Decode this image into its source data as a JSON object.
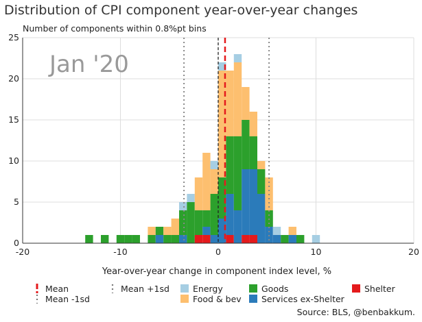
{
  "chart_data": {
    "type": "bar",
    "title": "Distribution of CPI component year-over-year changes",
    "subtitle": "Number of components within 0.8%pt bins",
    "annotation": "Jan '20",
    "xlabel": "Year-over-year change in component index level, %",
    "ylabel": "",
    "xlim": [
      -20,
      20
    ],
    "ylim": [
      0,
      25
    ],
    "x_ticks": [
      -20,
      -10,
      0,
      10,
      20
    ],
    "y_ticks": [
      0,
      5,
      10,
      15,
      20,
      25
    ],
    "bin_width": 0.8,
    "stacked": true,
    "grid": true,
    "x": [
      -13.6,
      -12.0,
      -10.4,
      -9.6,
      -8.8,
      -7.2,
      -6.4,
      -5.6,
      -4.8,
      -4.0,
      -3.2,
      -2.4,
      -1.6,
      -0.8,
      0.0,
      0.8,
      1.6,
      2.4,
      3.2,
      4.0,
      4.8,
      5.6,
      6.4,
      7.2,
      8.0,
      9.6,
      11.2
    ],
    "series": [
      {
        "name": "Shelter",
        "color": "#e41a1c",
        "values": [
          0,
          0,
          0,
          0,
          0,
          0,
          0,
          0,
          0,
          0,
          0,
          1,
          1,
          0,
          0,
          1,
          0,
          1,
          1,
          0,
          0,
          0,
          0,
          0,
          0,
          0,
          0
        ]
      },
      {
        "name": "Services ex-Shelter",
        "color": "#2b7bba",
        "values": [
          0,
          0,
          0,
          0,
          0,
          0,
          1,
          0,
          0,
          1,
          0,
          0,
          1,
          1,
          3,
          5,
          4,
          8,
          8,
          6,
          2,
          1,
          0,
          1,
          0,
          0,
          0
        ]
      },
      {
        "name": "Goods",
        "color": "#2ca02c",
        "values": [
          1,
          1,
          1,
          1,
          1,
          1,
          1,
          1,
          1,
          3,
          5,
          3,
          2,
          5,
          5,
          7,
          9,
          6,
          4,
          3,
          2,
          0,
          1,
          0,
          1,
          0,
          0
        ]
      },
      {
        "name": "Food & bev",
        "color": "#fdbf6f",
        "values": [
          0,
          0,
          0,
          0,
          0,
          1,
          0,
          1,
          2,
          0,
          0,
          4,
          7,
          3,
          13,
          8,
          9,
          4,
          3,
          1,
          4,
          0,
          0,
          1,
          0,
          0,
          0
        ]
      },
      {
        "name": "Energy",
        "color": "#a6cee3",
        "values": [
          0,
          0,
          0,
          0,
          0,
          0,
          0,
          0,
          0,
          1,
          1,
          0,
          0,
          1,
          1,
          0,
          1,
          0,
          0,
          0,
          0,
          1,
          0,
          0,
          0,
          1,
          0
        ]
      }
    ],
    "vlines": [
      {
        "name": "Mean",
        "x": 0.7,
        "color": "#e41a1c",
        "style": "dashed"
      },
      {
        "name": "Mean +1sd",
        "x": 5.2,
        "color": "#888888",
        "style": "dotted"
      },
      {
        "name": "Mean -1sd",
        "x": -3.5,
        "color": "#888888",
        "style": "dotted"
      },
      {
        "name": "",
        "x": 0,
        "color": "#222222",
        "style": "dashed"
      }
    ],
    "legend": {
      "placement": "bottom",
      "items": [
        {
          "label": "Mean",
          "kind": "redline"
        },
        {
          "label": "Mean -1sd",
          "kind": "dots"
        },
        {
          "label": "Mean +1sd",
          "kind": "dots"
        },
        {
          "label": "Energy",
          "kind": "swatch",
          "color": "#a6cee3"
        },
        {
          "label": "Food & bev",
          "kind": "swatch",
          "color": "#fdbf6f"
        },
        {
          "label": "Goods",
          "kind": "swatch",
          "color": "#2ca02c"
        },
        {
          "label": "Services ex-Shelter",
          "kind": "swatch",
          "color": "#2b7bba"
        },
        {
          "label": "Shelter",
          "kind": "swatch",
          "color": "#e41a1c"
        }
      ]
    },
    "source": "Source: BLS, @benbakkum."
  }
}
